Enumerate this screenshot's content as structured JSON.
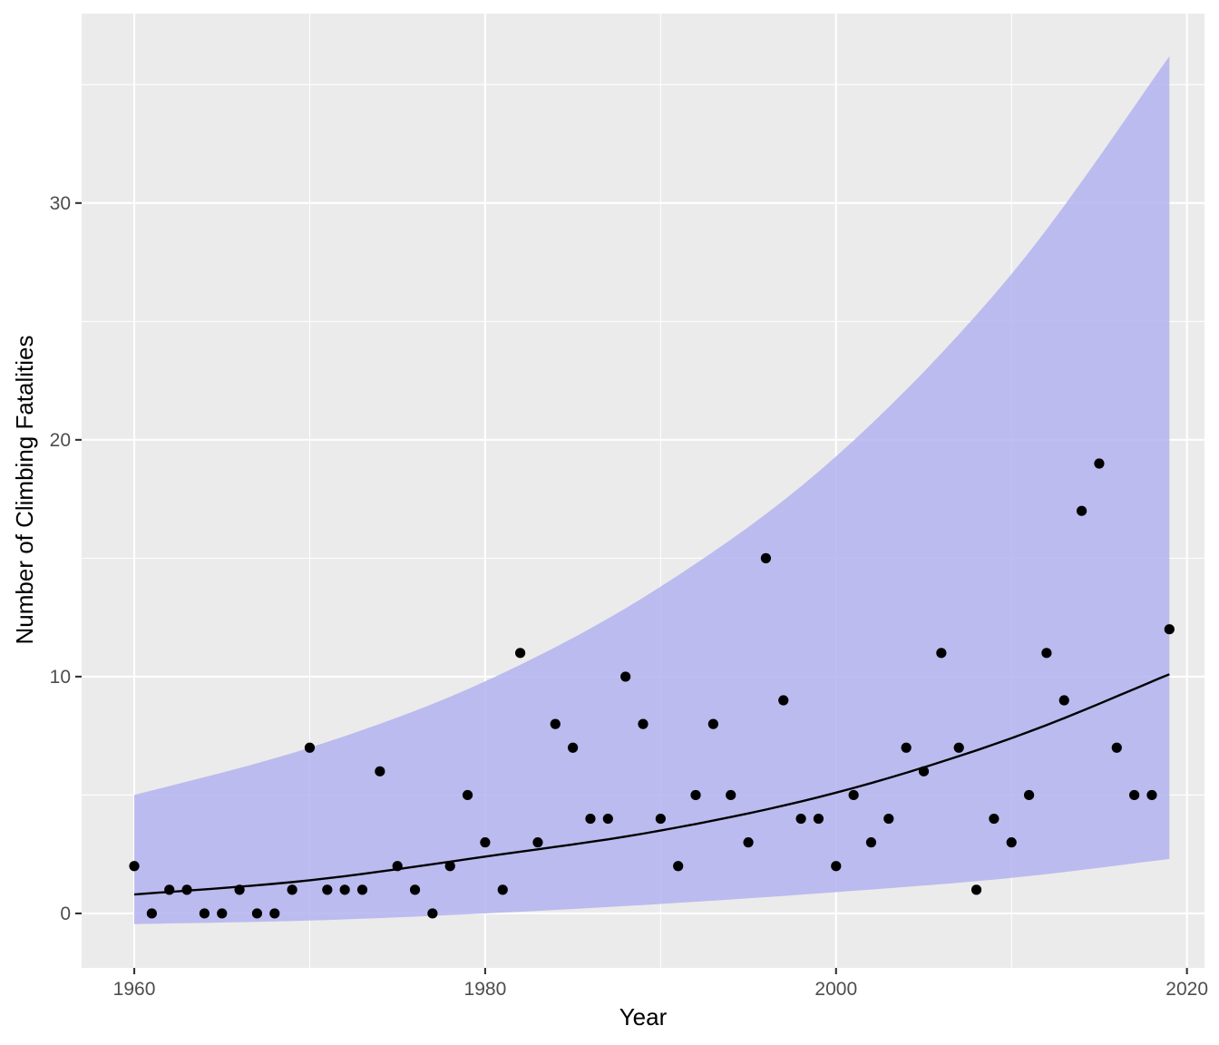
{
  "chart_data": {
    "type": "scatter",
    "title": "",
    "xlabel": "Year",
    "ylabel": "Number of Climbing Fatalities",
    "xlim": [
      1957,
      2021
    ],
    "ylim": [
      -2.3,
      38
    ],
    "x_ticks": [
      1960,
      1980,
      2000,
      2020
    ],
    "y_ticks": [
      0,
      10,
      20,
      30
    ],
    "grid": true,
    "legend": "none",
    "colors": {
      "panel": "#ebebeb",
      "points": "#000000",
      "fit_line": "#000000",
      "ribbon": "#b3b3f0"
    },
    "points": {
      "x": [
        1960,
        1961,
        1962,
        1963,
        1964,
        1965,
        1966,
        1967,
        1968,
        1969,
        1970,
        1971,
        1972,
        1973,
        1974,
        1975,
        1976,
        1977,
        1978,
        1979,
        1980,
        1981,
        1982,
        1983,
        1984,
        1985,
        1986,
        1987,
        1988,
        1989,
        1990,
        1991,
        1992,
        1993,
        1994,
        1995,
        1996,
        1997,
        1998,
        1999,
        2000,
        2001,
        2002,
        2003,
        2004,
        2005,
        2006,
        2007,
        2008,
        2009,
        2010,
        2011,
        2012,
        2013,
        2014,
        2015,
        2016,
        2017,
        2018,
        2019
      ],
      "y": [
        2,
        0,
        1,
        1,
        0,
        0,
        1,
        0,
        0,
        1,
        7,
        1,
        1,
        1,
        6,
        2,
        1,
        0,
        2,
        5,
        3,
        1,
        11,
        3,
        8,
        7,
        4,
        4,
        10,
        8,
        4,
        2,
        5,
        8,
        5,
        3,
        15,
        9,
        4,
        4,
        2,
        5,
        3,
        4,
        7,
        6,
        11,
        7,
        1,
        4,
        3,
        5,
        11,
        9,
        17,
        19,
        7,
        5,
        5,
        12
      ]
    },
    "fit": {
      "x": [
        1960,
        1970,
        1980,
        1990,
        2000,
        2010,
        2019
      ],
      "y": [
        0.8,
        1.4,
        2.4,
        3.5,
        5.1,
        7.4,
        10.1
      ]
    },
    "band": {
      "x": [
        1960,
        1970,
        1980,
        1990,
        2000,
        2010,
        2019
      ],
      "lower": [
        -0.45,
        -0.3,
        0.0,
        0.4,
        0.9,
        1.5,
        2.3
      ],
      "upper": [
        5.0,
        7.0,
        9.8,
        13.8,
        19.3,
        27.0,
        36.2
      ]
    }
  }
}
